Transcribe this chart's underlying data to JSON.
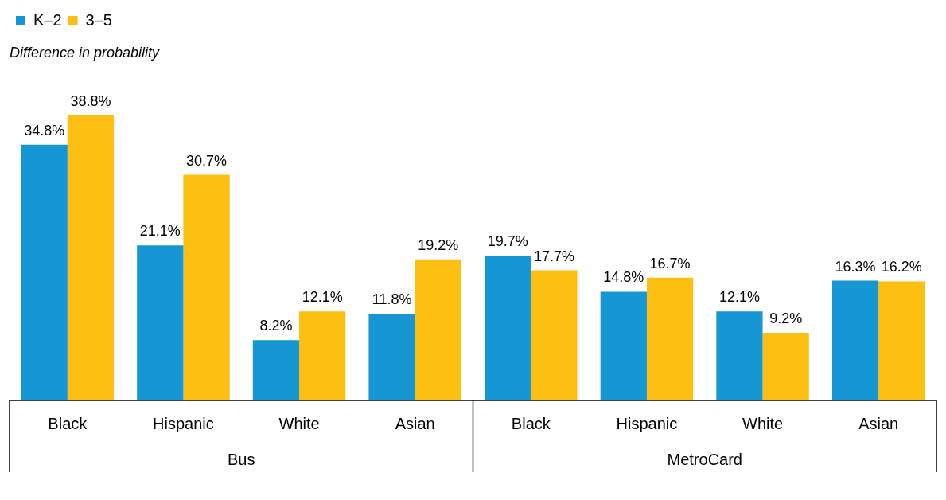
{
  "chart_data": {
    "type": "bar",
    "subtitle": "Difference in probability",
    "categories": [
      "Black",
      "Hispanic",
      "White",
      "Asian",
      "Black",
      "Hispanic",
      "White",
      "Asian"
    ],
    "series": [
      {
        "name": "K–2",
        "color": "#1696d2",
        "values": [
          34.8,
          21.1,
          8.2,
          11.8,
          19.7,
          14.8,
          12.1,
          16.3
        ],
        "value_labels": [
          "34.8%",
          "21.1%",
          "8.2%",
          "11.8%",
          "19.7%",
          "14.8%",
          "12.1%",
          "16.3%"
        ]
      },
      {
        "name": "3–5",
        "color": "#fdbf11",
        "values": [
          38.8,
          30.7,
          12.1,
          19.2,
          17.7,
          16.7,
          9.2,
          16.2
        ],
        "value_labels": [
          "38.8%",
          "30.7%",
          "12.1%",
          "19.2%",
          "17.7%",
          "16.7%",
          "9.2%",
          "16.2%"
        ]
      }
    ],
    "annotations": [
      "Bus",
      "MetroCard"
    ],
    "legend": "top left",
    "tick_labels": "x",
    "grid": false
  }
}
